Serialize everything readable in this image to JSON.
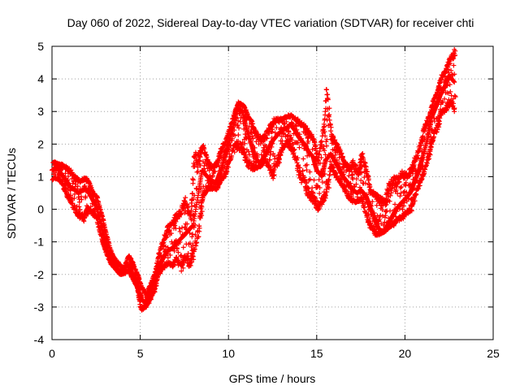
{
  "chart_data": {
    "type": "scatter",
    "title": "Day 060 of 2022, Sidereal Day-to-day VTEC variation (SDTVAR) for receiver chti",
    "xlabel": "GPS time / hours",
    "ylabel": "SDTVAR / TECUs",
    "xlim": [
      0,
      25
    ],
    "ylim": [
      -4,
      5
    ],
    "x_ticks": [
      0,
      5,
      10,
      15,
      20,
      25
    ],
    "y_ticks": [
      -4,
      -3,
      -2,
      -1,
      0,
      1,
      2,
      3,
      4,
      5
    ],
    "grid": true,
    "marker": "+",
    "color": "#ff0000",
    "series": [
      {
        "name": "SDTVAR",
        "x": [
          0.0,
          0.3,
          0.5,
          0.8,
          1.0,
          1.3,
          1.5,
          1.8,
          2.0,
          2.3,
          2.5,
          2.8,
          3.0,
          3.3,
          3.5,
          3.8,
          4.0,
          4.3,
          4.5,
          4.8,
          5.0,
          5.3,
          5.5,
          5.8,
          6.0,
          6.3,
          6.5,
          6.8,
          7.0,
          7.3,
          7.5,
          7.8,
          8.0,
          8.3,
          8.5,
          8.8,
          9.0,
          9.3,
          9.5,
          9.8,
          10.0,
          10.3,
          10.5,
          10.8,
          11.0,
          11.3,
          11.5,
          11.8,
          12.0,
          12.3,
          12.5,
          12.8,
          13.0,
          13.3,
          13.5,
          13.8,
          14.0,
          14.3,
          14.5,
          14.8,
          15.0,
          15.3,
          15.5,
          15.8,
          16.0,
          16.3,
          16.5,
          16.8,
          17.0,
          17.3,
          17.5,
          17.8,
          18.0,
          18.3,
          18.5,
          18.8,
          19.0,
          19.3,
          19.5,
          19.8,
          20.0,
          20.3,
          20.5,
          20.8,
          21.0,
          21.3,
          21.5,
          21.8,
          22.0,
          22.3,
          22.5,
          22.8
        ],
        "y": [
          1.2,
          1.3,
          1.1,
          0.9,
          0.7,
          0.6,
          0.5,
          0.6,
          0.6,
          0.3,
          0.1,
          -0.5,
          -1.0,
          -1.5,
          -1.7,
          -1.9,
          -1.9,
          -1.7,
          -1.9,
          -2.3,
          -2.7,
          -2.9,
          -2.6,
          -2.2,
          -1.8,
          -1.5,
          -1.3,
          -1.2,
          -1.1,
          -0.9,
          -0.8,
          -0.6,
          -0.5,
          0.5,
          1.2,
          1.0,
          0.9,
          0.8,
          1.1,
          1.6,
          2.0,
          2.6,
          3.1,
          3.0,
          2.5,
          2.0,
          1.6,
          1.4,
          1.6,
          1.9,
          2.1,
          2.3,
          2.4,
          2.5,
          2.6,
          2.4,
          2.2,
          2.0,
          1.8,
          1.6,
          1.2,
          1.0,
          1.5,
          1.7,
          1.5,
          1.2,
          1.0,
          0.8,
          0.6,
          0.5,
          0.6,
          0.4,
          0.1,
          -0.3,
          -0.6,
          -0.7,
          -0.5,
          -0.2,
          0.0,
          0.2,
          0.3,
          0.5,
          0.8,
          1.2,
          1.6,
          2.2,
          2.8,
          3.2,
          3.5,
          3.8,
          4.1,
          3.9
        ],
        "y_lower": [
          0.9,
          0.9,
          0.8,
          0.4,
          0.2,
          -0.1,
          -0.3,
          -0.4,
          -0.1,
          -0.2,
          -0.3,
          -1.0,
          -1.3,
          -1.7,
          -1.8,
          -2.0,
          -2.0,
          -1.9,
          -2.1,
          -2.4,
          -3.1,
          -3.0,
          -2.8,
          -2.5,
          -2.0,
          -1.8,
          -1.7,
          -1.8,
          -1.6,
          -1.9,
          -1.6,
          -1.8,
          -1.4,
          -0.8,
          0.3,
          0.6,
          0.6,
          0.6,
          0.8,
          1.0,
          1.4,
          1.8,
          1.8,
          1.7,
          1.3,
          1.2,
          1.2,
          1.3,
          1.5,
          1.2,
          0.9,
          1.4,
          1.8,
          2.0,
          1.8,
          1.4,
          0.9,
          0.6,
          0.3,
          0.2,
          -0.1,
          0.2,
          0.3,
          1.3,
          1.0,
          0.8,
          0.6,
          0.3,
          0.2,
          0.2,
          0.3,
          -0.3,
          -0.6,
          -0.8,
          -0.8,
          -0.7,
          -0.6,
          -0.5,
          -0.4,
          -0.3,
          -0.2,
          -0.1,
          0.3,
          0.7,
          1.0,
          1.5,
          2.0,
          2.4,
          2.9,
          3.0,
          3.2,
          3.0
        ],
        "y_upper": [
          1.5,
          1.4,
          1.4,
          1.3,
          1.2,
          1.0,
          0.9,
          1.0,
          0.9,
          0.5,
          0.4,
          -0.2,
          -0.7,
          -1.3,
          -1.5,
          -1.7,
          -1.8,
          -1.4,
          -1.6,
          -2.0,
          -2.3,
          -2.6,
          -2.3,
          -1.9,
          -1.3,
          -0.8,
          -0.5,
          -0.3,
          -0.1,
          0.1,
          0.4,
          -0.2,
          1.8,
          1.8,
          2.0,
          1.5,
          1.3,
          1.5,
          1.9,
          2.2,
          2.5,
          3.0,
          3.3,
          3.2,
          3.0,
          2.7,
          2.4,
          2.2,
          2.3,
          2.6,
          2.8,
          2.8,
          2.8,
          2.9,
          2.9,
          2.8,
          2.7,
          2.6,
          2.4,
          2.2,
          1.5,
          2.5,
          3.8,
          2.3,
          2.1,
          1.8,
          1.5,
          1.3,
          1.5,
          1.2,
          1.8,
          1.2,
          0.6,
          0.5,
          0.4,
          0.3,
          0.8,
          1.0,
          1.0,
          1.2,
          1.1,
          1.3,
          1.6,
          2.0,
          2.5,
          2.9,
          3.3,
          3.7,
          4.1,
          4.4,
          4.7,
          4.9
        ]
      }
    ]
  }
}
